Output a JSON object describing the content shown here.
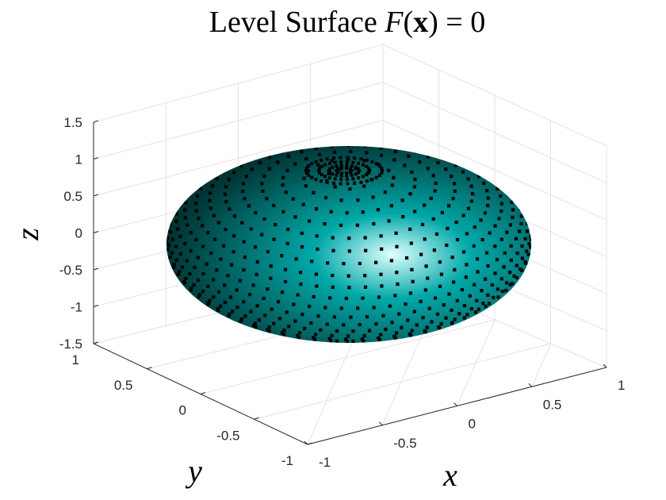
{
  "chart_data": {
    "type": "3d-surface",
    "title": {
      "prefix": "Level Surface ",
      "func": "F",
      "open": "(",
      "arg": "x",
      "close": ") = 0"
    },
    "xlabel": "x",
    "ylabel": "y",
    "zlabel": "z",
    "xlim": [
      -1,
      1
    ],
    "ylim": [
      -1,
      1
    ],
    "zlim": [
      -1.5,
      1.5
    ],
    "x_ticks": [
      "-1",
      "-0.5",
      "0",
      "0.5",
      "1"
    ],
    "y_ticks": [
      "-1",
      "-0.5",
      "0",
      "0.5",
      "1"
    ],
    "z_ticks": [
      "-1.5",
      "-1",
      "-0.5",
      "0",
      "0.5",
      "1",
      "1.5"
    ],
    "surface": {
      "shape": "oblate ellipsoid",
      "radius_xy": 1,
      "radius_z": 1.15,
      "color": "#00a8a8",
      "highlight_color": "#dfffff",
      "shadow_color": "#003333"
    },
    "markers": {
      "shape": "square",
      "color": "#000000"
    },
    "grid": true
  }
}
